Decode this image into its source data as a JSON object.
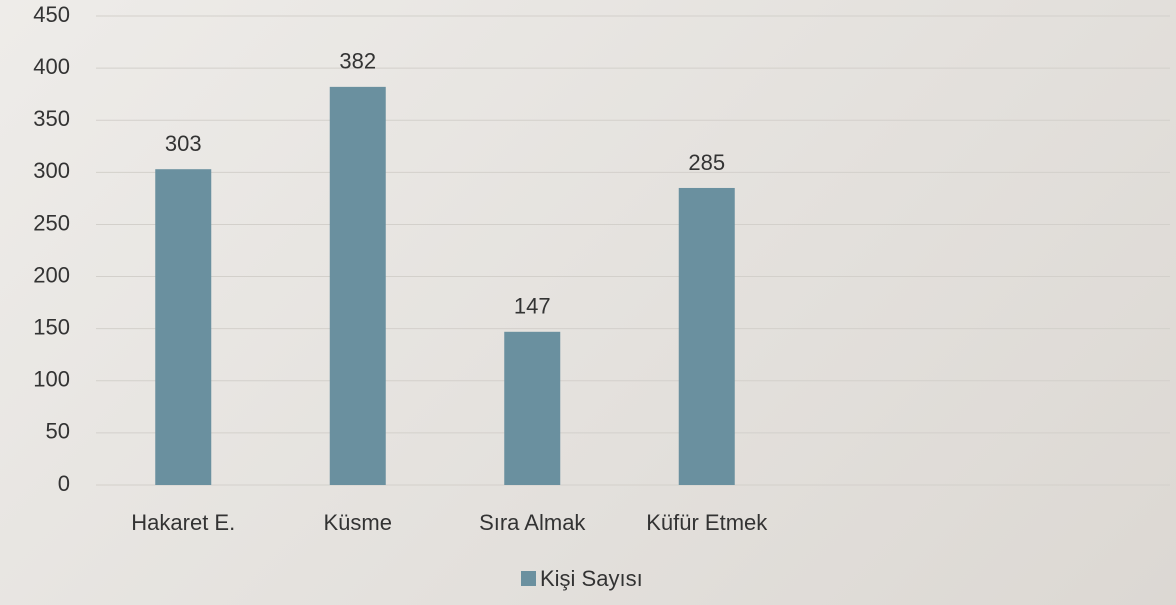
{
  "chart_data": {
    "type": "bar",
    "categories": [
      "Hakaret E.",
      "Küsme",
      "Sıra Almak",
      "Küfür Etmek"
    ],
    "series": [
      {
        "name": "Kişi Sayısı",
        "color": "#6a909f",
        "values": [
          303,
          382,
          147,
          285
        ]
      }
    ],
    "ylim": [
      0,
      450
    ],
    "yticks": [
      0,
      50,
      100,
      150,
      200,
      250,
      300,
      350,
      400,
      450
    ],
    "grid": true,
    "legend": "bottom",
    "data_labels": true
  }
}
